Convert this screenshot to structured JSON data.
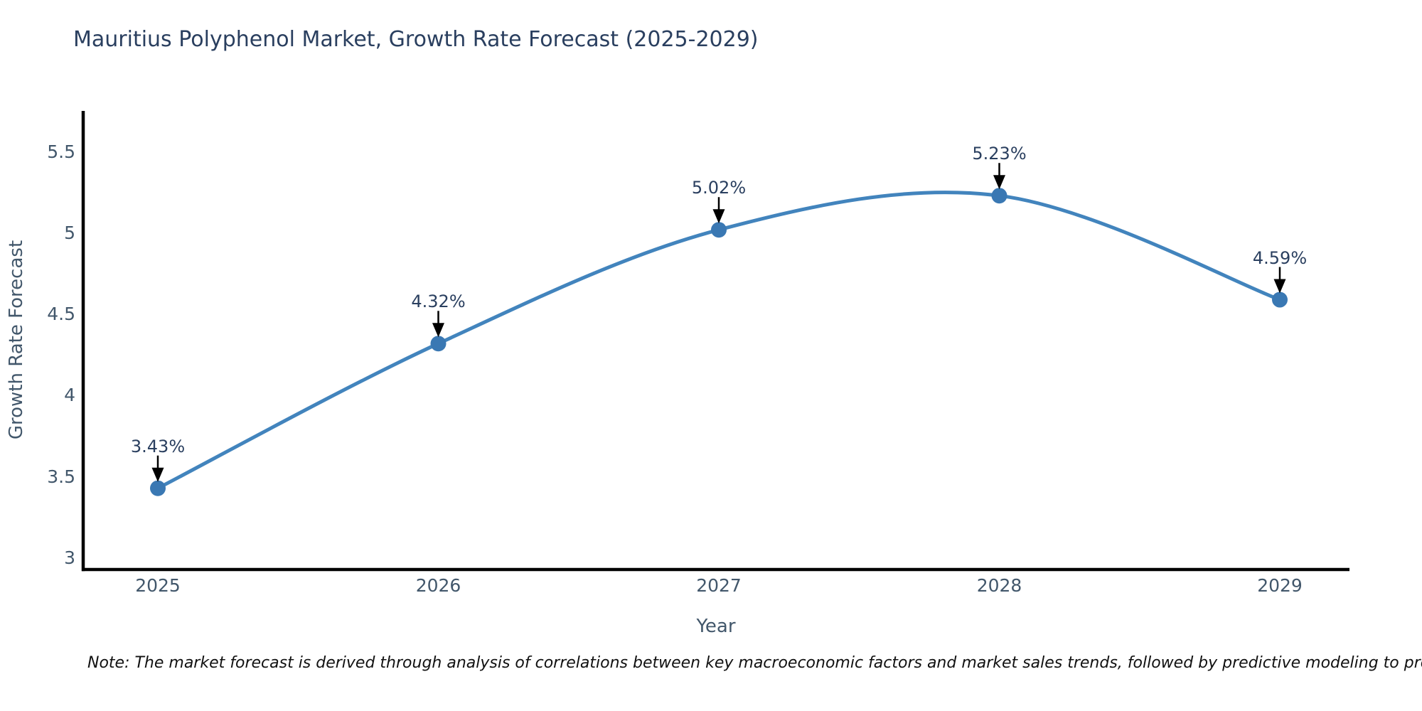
{
  "page": {
    "title": "Mauritius Polyphenol Market, Growth Rate Forecast (2025-2029)",
    "note": "Note: The market forecast is derived through analysis of correlations between key macroeconomic factors and market sales trends, followed by predictive modeling to project future sales"
  },
  "chart_data": {
    "type": "line",
    "line_shape": "spline",
    "title": "Mauritius Polyphenol Market, Growth Rate Forecast (2025-2029)",
    "categories": [
      "2025",
      "2026",
      "2027",
      "2028",
      "2029"
    ],
    "values": [
      3.43,
      4.32,
      5.02,
      5.23,
      4.59
    ],
    "point_labels": [
      "3.43%",
      "4.32%",
      "5.02%",
      "5.23%",
      "4.59%"
    ],
    "series_name": "Growth Rate Forecast",
    "xlabel": "Year",
    "ylabel": "Growth Rate Forecast",
    "y_ticks": [
      5.5,
      5,
      4.5,
      4,
      3.5,
      3
    ],
    "ylim": [
      2.93,
      5.74
    ],
    "grid": false,
    "legend": "none",
    "markers": true,
    "annotations_arrows": true,
    "colors": {
      "line": "#4284bd",
      "marker": "#3a78b3",
      "axis": "#000000",
      "title_text": "#2a3f5f",
      "tick_text": "#42576b",
      "annotation_text": "#2a3f5f",
      "arrow": "#000000"
    }
  }
}
